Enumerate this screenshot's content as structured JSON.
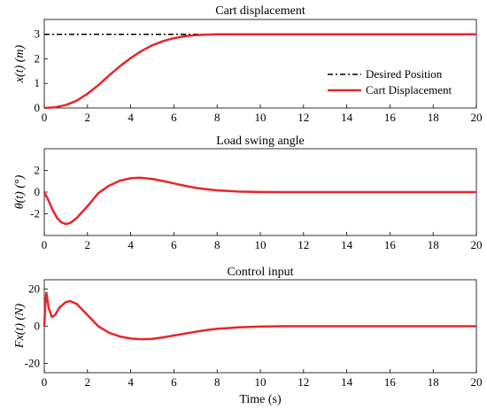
{
  "chart_data": [
    {
      "type": "line",
      "title": "Cart displacement",
      "ylabel": "x(t) (m)",
      "xlabel": "",
      "xlim": [
        0,
        20
      ],
      "ylim": [
        0,
        3.6
      ],
      "xticks": [
        "0",
        "2",
        "4",
        "6",
        "8",
        "10",
        "12",
        "14",
        "16",
        "18",
        "20"
      ],
      "yticks": [
        {
          "v": 0,
          "t": "0"
        },
        {
          "v": 1,
          "t": "1"
        },
        {
          "v": 2,
          "t": "2"
        },
        {
          "v": 3,
          "t": "3"
        }
      ],
      "legend": {
        "position": "bottom-right",
        "entries": [
          "Desired Position",
          "Cart Displacement"
        ]
      },
      "series": [
        {
          "name": "Desired Position",
          "color": "#000000",
          "style": "dashdot",
          "x": [
            0,
            8
          ],
          "y": [
            3,
            3
          ]
        },
        {
          "name": "Cart Displacement",
          "color": "#e8262a",
          "style": "solid",
          "x": [
            0,
            0.5,
            1,
            1.5,
            2,
            2.5,
            3,
            3.5,
            4,
            4.5,
            5,
            5.5,
            6,
            6.5,
            7,
            7.5,
            8,
            8.5,
            9,
            10,
            11,
            12,
            14,
            16,
            18,
            20
          ],
          "y": [
            0,
            0.03,
            0.12,
            0.3,
            0.58,
            0.93,
            1.32,
            1.7,
            2.03,
            2.32,
            2.55,
            2.72,
            2.84,
            2.92,
            2.96,
            2.985,
            2.995,
            3,
            3,
            3,
            3,
            3,
            3,
            3,
            3,
            3
          ]
        }
      ]
    },
    {
      "type": "line",
      "title": "Load swing angle",
      "ylabel": "θ(t) (°)",
      "xlabel": "",
      "xlim": [
        0,
        20
      ],
      "ylim": [
        -4,
        4
      ],
      "xticks": [
        "0",
        "2",
        "4",
        "6",
        "8",
        "10",
        "12",
        "14",
        "16",
        "18",
        "20"
      ],
      "yticks": [
        {
          "v": -2,
          "t": "-2"
        },
        {
          "v": 0,
          "t": "0"
        },
        {
          "v": 2,
          "t": "2"
        }
      ],
      "series": [
        {
          "name": "",
          "color": "#e8262a",
          "style": "solid",
          "x": [
            0,
            0.2,
            0.4,
            0.6,
            0.8,
            1,
            1.2,
            1.5,
            2,
            2.5,
            3,
            3.5,
            4,
            4.4,
            5,
            5.5,
            6,
            6.5,
            7,
            7.5,
            8,
            9,
            10,
            11,
            12,
            14,
            16,
            18,
            20
          ],
          "y": [
            0,
            -0.8,
            -1.7,
            -2.4,
            -2.8,
            -2.95,
            -2.85,
            -2.4,
            -1.3,
            -0.1,
            0.6,
            1.05,
            1.27,
            1.32,
            1.22,
            1.02,
            0.8,
            0.58,
            0.4,
            0.26,
            0.16,
            0.05,
            0.01,
            0,
            0,
            0,
            0,
            0,
            0
          ]
        }
      ]
    },
    {
      "type": "line",
      "title": "Control input",
      "ylabel": "Fx(t) (N)",
      "xlabel": "Time (s)",
      "xlim": [
        0,
        20
      ],
      "ylim": [
        -25,
        25
      ],
      "xticks": [
        "0",
        "2",
        "4",
        "6",
        "8",
        "10",
        "12",
        "14",
        "16",
        "18",
        "20"
      ],
      "yticks": [
        {
          "v": -20,
          "t": "-20"
        },
        {
          "v": 0,
          "t": "0"
        },
        {
          "v": 20,
          "t": "20"
        }
      ],
      "series": [
        {
          "name": "",
          "color": "#e8262a",
          "style": "solid",
          "x": [
            0,
            0.05,
            0.1,
            0.2,
            0.35,
            0.5,
            0.7,
            1,
            1.2,
            1.5,
            2,
            2.5,
            3,
            3.5,
            4,
            4.5,
            5,
            5.5,
            6,
            6.5,
            7,
            7.5,
            8,
            9,
            10,
            11,
            12,
            14,
            16,
            18,
            20
          ],
          "y": [
            0,
            12,
            18,
            10,
            5,
            6,
            10,
            13,
            13.5,
            12,
            6,
            0,
            -3.5,
            -5.5,
            -6.6,
            -7,
            -6.8,
            -6,
            -5,
            -4,
            -3,
            -2.1,
            -1.4,
            -0.6,
            -0.2,
            0,
            0,
            0,
            0,
            0,
            0
          ]
        }
      ]
    }
  ]
}
